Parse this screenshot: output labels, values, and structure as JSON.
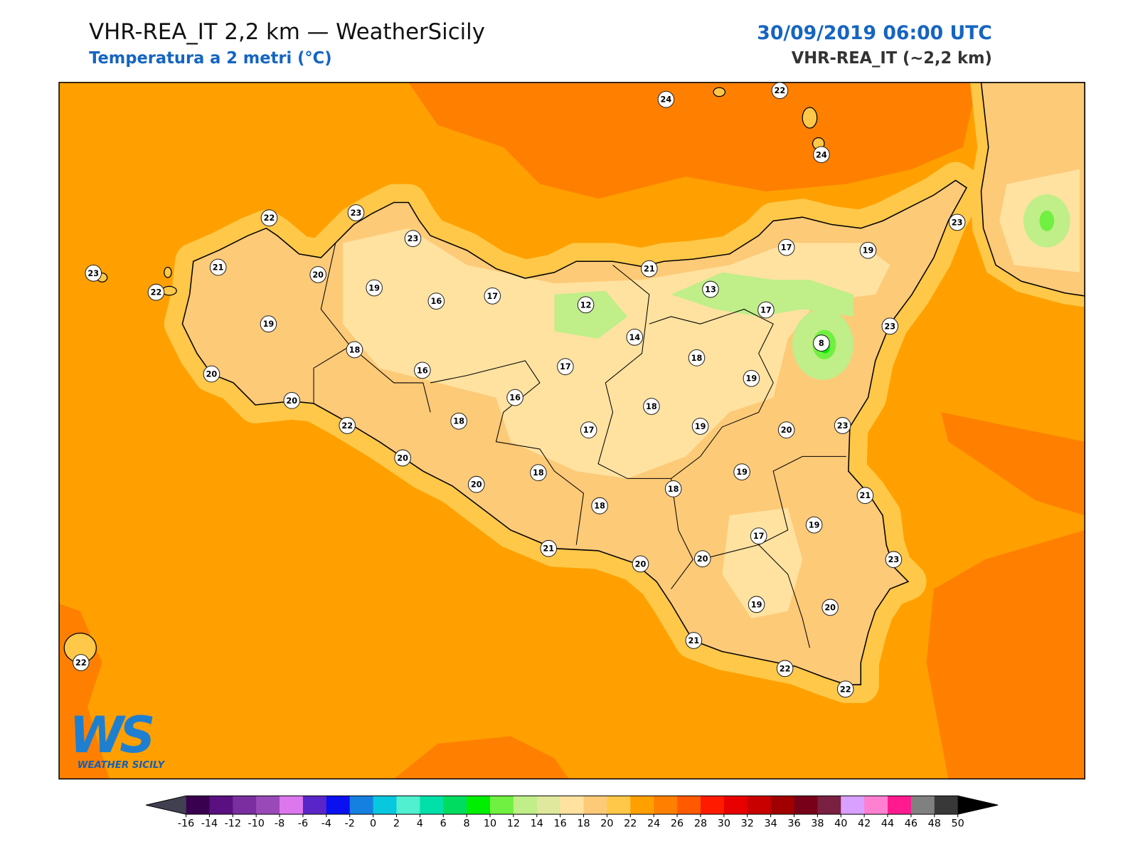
{
  "header": {
    "title": "VHR-REA_IT 2,2 km — WeatherSicily",
    "subtitle": "Temperatura a 2 metri (°C)",
    "date": "30/09/2019 06:00 UTC",
    "model": "VHR-REA_IT (~2,2 km)"
  },
  "logo": {
    "mark": "WS",
    "name": "WEATHER SICILY"
  },
  "stations": [
    24,
    22,
    24,
    23,
    22,
    23,
    23,
    23,
    21,
    22,
    20,
    19,
    16,
    17,
    12,
    21,
    17,
    19,
    13,
    17,
    19,
    18,
    14,
    8,
    23,
    16,
    17,
    18,
    19,
    20,
    20,
    16,
    18,
    22,
    18,
    17,
    19,
    20,
    23,
    20,
    18,
    19,
    20,
    18,
    18,
    21,
    19,
    17,
    21,
    20,
    20,
    23,
    19,
    20,
    21,
    22,
    22,
    22
  ],
  "colorbar": {
    "ticks": [
      -16,
      -14,
      -12,
      -10,
      -8,
      -6,
      -4,
      -2,
      0,
      2,
      4,
      6,
      8,
      10,
      12,
      14,
      16,
      18,
      20,
      22,
      24,
      26,
      28,
      30,
      32,
      34,
      36,
      38,
      40,
      42,
      44,
      46,
      48,
      50
    ],
    "colors": [
      "#3a0050",
      "#5a1080",
      "#7a2ea0",
      "#9a4ab8",
      "#dd77ee",
      "#5a25c8",
      "#0a10f0",
      "#1680e0",
      "#08c8e0",
      "#50f0d0",
      "#00e0a8",
      "#00dc60",
      "#00ee00",
      "#70f040",
      "#c0ee88",
      "#dfe89c",
      "#ffe2a0",
      "#fdca78",
      "#ffc848",
      "#ffa000",
      "#ff8000",
      "#ff5a00",
      "#ff1a00",
      "#e80000",
      "#c80000",
      "#a00000",
      "#780018",
      "#7a2040",
      "#d8a0ff",
      "#ff80d0",
      "#ff1a90",
      "#808080",
      "#383838"
    ],
    "under": "#404050",
    "over": "#000000"
  }
}
